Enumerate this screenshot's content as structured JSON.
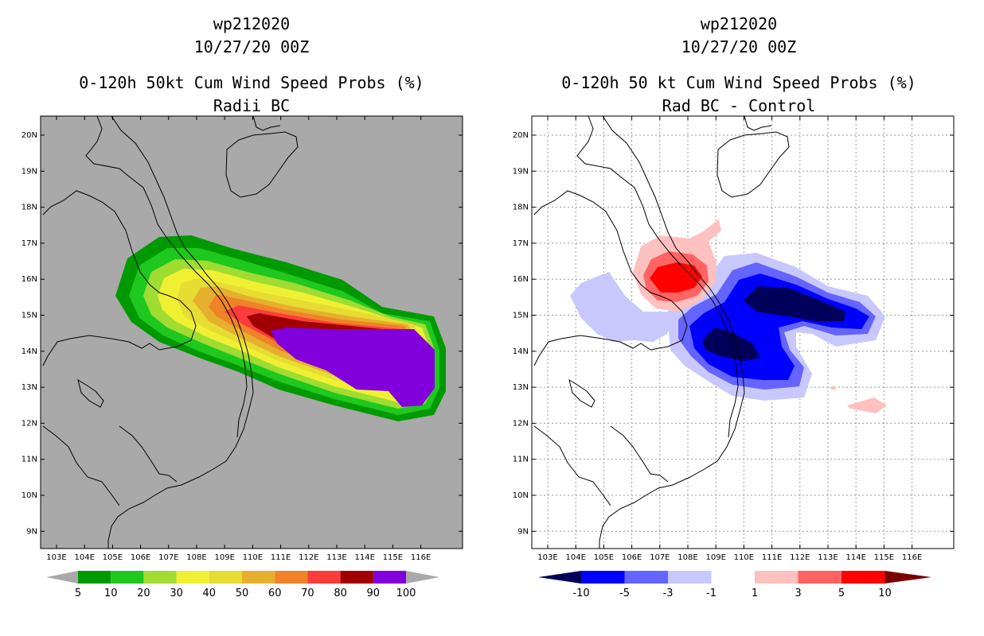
{
  "left_panel": {
    "title_line1": "wp212020",
    "title_line2": "10/27/20 00Z",
    "title_line3": "0-120h 50kt Cum Wind Speed Probs (%)",
    "title_line4": "Radii BC",
    "colorbar_labels": [
      "5",
      "10",
      "20",
      "30",
      "40",
      "50",
      "60",
      "70",
      "80",
      "90",
      "100"
    ],
    "colorbar_colors": [
      "#009a00",
      "#1ec81e",
      "#a0dc32",
      "#f0f032",
      "#e6dc32",
      "#e6af2d",
      "#f08228",
      "#fa3c3c",
      "#a00000",
      "#8200dc"
    ],
    "background_color": "#a9a9a9"
  },
  "right_panel": {
    "title_line1": "wp212020",
    "title_line2": "10/27/20 00Z",
    "title_line3": "0-120h 50 kt Cum Wind Speed Probs (%)",
    "title_line4": "Rad BC - Control",
    "colorbar_labels": [
      "-10",
      "-5",
      "-3",
      "-1",
      "1",
      "3",
      "5",
      "10"
    ],
    "colorbar_colors": [
      "#00005a",
      "#0000ff",
      "#6464ff",
      "#c8c8ff",
      "#ffffff",
      "#ffc0c0",
      "#ff6464",
      "#ff0000",
      "#7a0000"
    ]
  },
  "lat_labels": [
    "9N",
    "10N",
    "11N",
    "12N",
    "13N",
    "14N",
    "15N",
    "16N",
    "17N",
    "18N",
    "19N",
    "20N"
  ],
  "lon_labels": [
    "103E",
    "104E",
    "105E",
    "106E",
    "107E",
    "108E",
    "109E",
    "110E",
    "111E",
    "112E",
    "113E",
    "114E",
    "115E",
    "116E"
  ]
}
